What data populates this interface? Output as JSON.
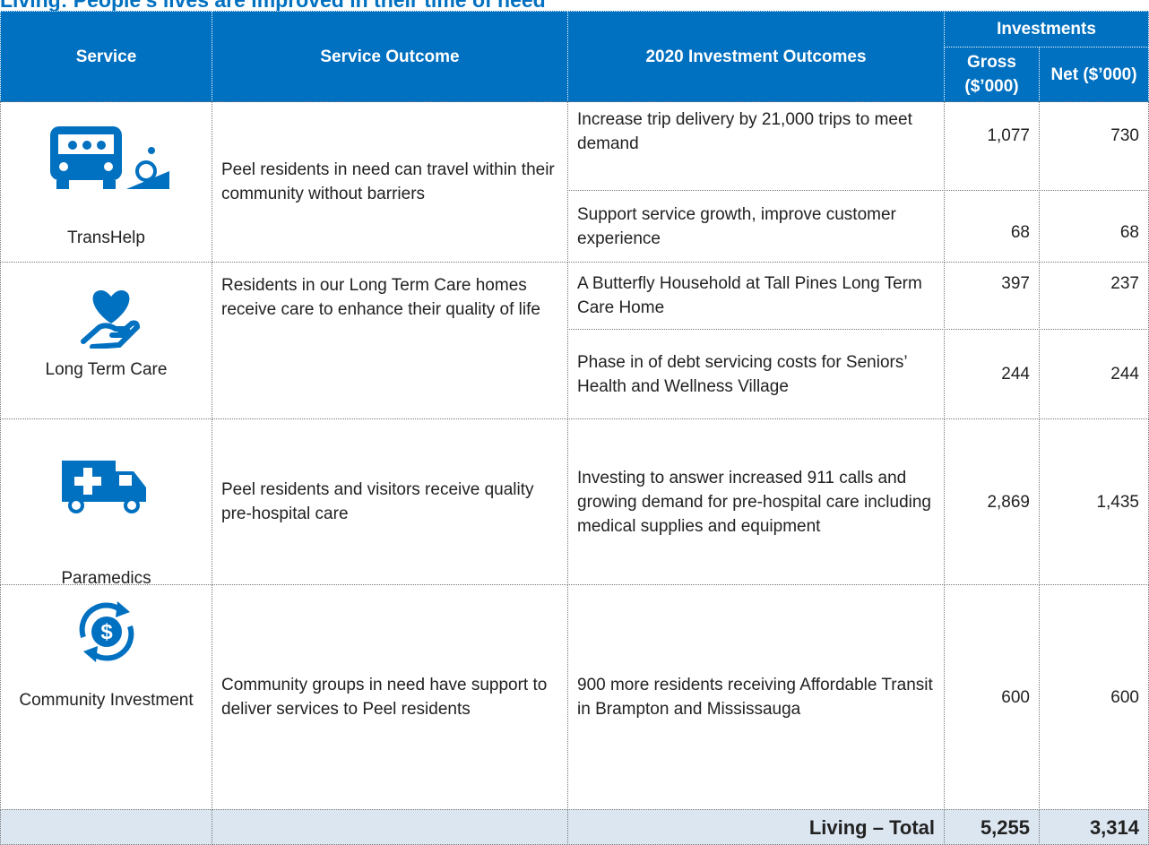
{
  "title": "Living: People's lives are improved in their time of need",
  "header": {
    "service": "Service",
    "outcome": "Service Outcome",
    "investment_outcomes": "2020 Investment Outcomes",
    "investments": "Investments",
    "gross": "Gross ($’000)",
    "net": "Net ($’000)"
  },
  "rows": [
    {
      "service": "TransHelp",
      "outcome": "Peel residents in need can travel within their community without barriers",
      "items": [
        {
          "text": "Increase trip delivery by 21,000 trips to meet demand",
          "gross": "1,077",
          "net": "730"
        },
        {
          "text": "Support service growth, improve customer experience",
          "gross": "68",
          "net": "68"
        }
      ]
    },
    {
      "service": "Long Term Care",
      "outcome": "Residents in our Long Term Care homes receive care to enhance their quality of life",
      "items": [
        {
          "text": "A Butterfly Household at Tall Pines Long Term Care Home",
          "gross": "397",
          "net": "237"
        },
        {
          "text": "Phase in of debt servicing costs for Seniors’ Health and Wellness Village",
          "gross": "244",
          "net": "244"
        }
      ]
    },
    {
      "service": "Paramedics",
      "outcome": "Peel residents and visitors receive quality pre-hospital care",
      "items": [
        {
          "text": "Investing to answer increased 911 calls and growing demand for pre-hospital care including medical supplies and equipment",
          "gross": "2,869",
          "net": "1,435"
        }
      ]
    },
    {
      "service": "Community Investment",
      "outcome": "Community groups in need have support to deliver services to Peel residents",
      "items": [
        {
          "text": "900 more residents receiving Affordable Transit in Brampton and Mississauga",
          "gross": "600",
          "net": "600"
        }
      ]
    }
  ],
  "total": {
    "label": "Living – Total",
    "gross": "5,255",
    "net": "3,314"
  }
}
